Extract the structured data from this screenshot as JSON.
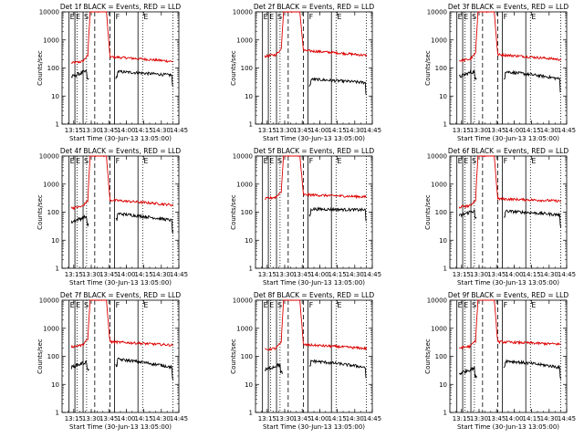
{
  "chart_data": {
    "type": "line",
    "layout": "3x3 grid of panels",
    "panel_titles": [
      "Det 1f BLACK = Events, RED = LLD",
      "Det 2f BLACK = Events, RED = LLD",
      "Det 3f BLACK = Events, RED = LLD",
      "Det 4f BLACK = Events, RED = LLD",
      "Det 5f BLACK = Events, RED = LLD",
      "Det 6f BLACK = Events, RED = LLD",
      "Det 7f BLACK = Events, RED = LLD",
      "Det 8f BLACK = Events, RED = LLD",
      "Det 9f BLACK = Events, RED = LLD"
    ],
    "xlabel": "Start Time (30-Jun-13 13:05:00)",
    "ylabel": "Counts/sec",
    "x_ticks": [
      "13:15",
      "13:30",
      "13:45",
      "14:00",
      "14:15",
      "14:30",
      "14:45"
    ],
    "y_ticks": [
      "1",
      "10",
      "100",
      "1000",
      "10000"
    ],
    "y_scale": "log",
    "ylim": [
      1,
      10000
    ],
    "xlim_minutes_after_13_05": [
      0,
      100
    ],
    "interval_markers": [
      {
        "label": "E",
        "time": "13:11",
        "style": "solid"
      },
      {
        "label": "E",
        "time": "13:16",
        "style": "solid"
      },
      {
        "label": "",
        "time": "13:18",
        "style": "dotted"
      },
      {
        "label": "S",
        "time": "13:23",
        "style": "solid"
      },
      {
        "label": "",
        "time": "13:26",
        "style": "dotted"
      },
      {
        "label": "",
        "time": "13:33",
        "style": "dashed"
      },
      {
        "label": "",
        "time": "13:46",
        "style": "dashed"
      },
      {
        "label": "F",
        "time": "13:50",
        "style": "solid"
      },
      {
        "label": "",
        "time": "14:10",
        "style": "solid"
      },
      {
        "label": "E",
        "time": "14:14",
        "style": "dotted"
      },
      {
        "label": "",
        "time": "14:40",
        "style": "dotted"
      }
    ],
    "series": [
      {
        "name": "Events",
        "color": "#000000"
      },
      {
        "name": "LLD",
        "color": "#dd0000"
      }
    ],
    "panels": [
      {
        "det": "1f",
        "events": {
          "pre": 60,
          "mid": 75,
          "end": 55
        },
        "lld": {
          "pre": 150,
          "peak": 10000,
          "mid": 250,
          "end": 170
        }
      },
      {
        "det": "2f",
        "events": {
          "pre": 0,
          "mid": 40,
          "end": 30
        },
        "lld": {
          "pre": 260,
          "peak": 10000,
          "mid": 420,
          "end": 280
        }
      },
      {
        "det": "3f",
        "events": {
          "pre": 60,
          "mid": 75,
          "end": 40
        },
        "lld": {
          "pre": 180,
          "peak": 10000,
          "mid": 300,
          "end": 200
        }
      },
      {
        "det": "4f",
        "events": {
          "pre": 55,
          "mid": 90,
          "end": 50
        },
        "lld": {
          "pre": 140,
          "peak": 10000,
          "mid": 270,
          "end": 180
        }
      },
      {
        "det": "5f",
        "events": {
          "pre": 0,
          "mid": 130,
          "end": 120
        },
        "lld": {
          "pre": 300,
          "peak": 10000,
          "mid": 420,
          "end": 350
        }
      },
      {
        "det": "6f",
        "events": {
          "pre": 90,
          "mid": 110,
          "end": 80
        },
        "lld": {
          "pre": 150,
          "peak": 10000,
          "mid": 300,
          "end": 250
        }
      },
      {
        "det": "7f",
        "events": {
          "pre": 50,
          "mid": 80,
          "end": 40
        },
        "lld": {
          "pre": 220,
          "peak": 10000,
          "mid": 330,
          "end": 250
        }
      },
      {
        "det": "8f",
        "events": {
          "pre": 40,
          "mid": 70,
          "end": 40
        },
        "lld": {
          "pre": 170,
          "peak": 10000,
          "mid": 260,
          "end": 190
        }
      },
      {
        "det": "9f",
        "events": {
          "pre": 30,
          "mid": 70,
          "end": 40
        },
        "lld": {
          "pre": 200,
          "peak": 10000,
          "mid": 330,
          "end": 270
        }
      }
    ]
  }
}
